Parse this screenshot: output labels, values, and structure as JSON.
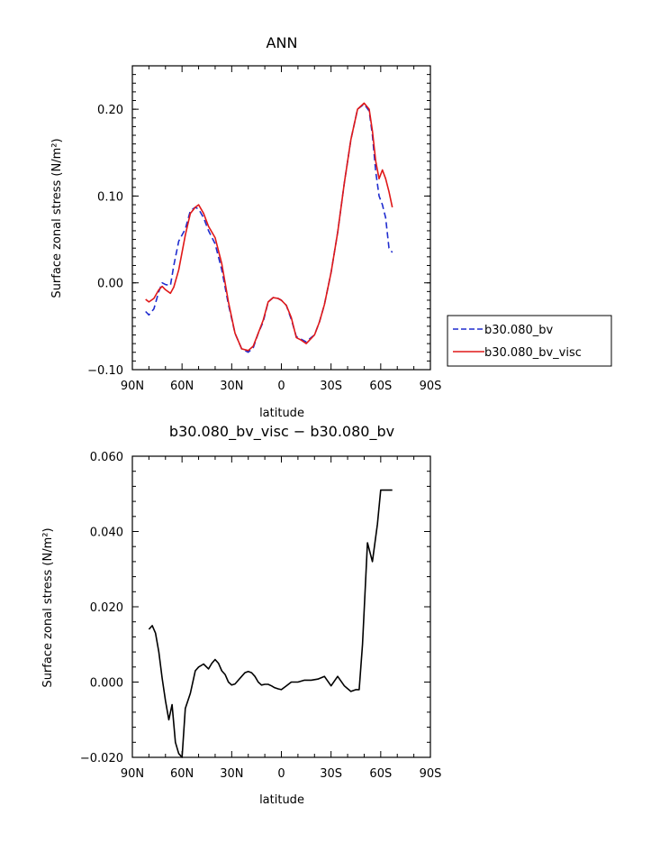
{
  "chart_data": [
    {
      "type": "line",
      "title": "ANN",
      "xlabel": "latitude",
      "ylabel": "Surface zonal stress (N/m²)",
      "xlim": [
        90,
        -90
      ],
      "ylim": [
        -0.1,
        0.25
      ],
      "xticks": [
        90,
        60,
        30,
        0,
        -30,
        -60,
        -90
      ],
      "xtick_labels": [
        "90N",
        "60N",
        "30N",
        "0",
        "30S",
        "60S",
        "90S"
      ],
      "yticks": [
        -0.1,
        0.0,
        0.1,
        0.2
      ],
      "ytick_labels": [
        "−0.10",
        "0.00",
        "0.10",
        "0.20"
      ],
      "legend": "right",
      "series": [
        {
          "name": "b30.080_bv",
          "color": "#1f2ccf",
          "dash": "dashed",
          "x": [
            82,
            80,
            77,
            74,
            72,
            70,
            67,
            65,
            62,
            58,
            55,
            52,
            50,
            47,
            44,
            40,
            36,
            32,
            28,
            24,
            20,
            17,
            14,
            11,
            8,
            5,
            2,
            0,
            -3,
            -6,
            -9,
            -12,
            -15,
            -18,
            -20,
            -23,
            -26,
            -30,
            -34,
            -38,
            -42,
            -46,
            -50,
            -53,
            -55,
            -57,
            -59,
            -61,
            -63,
            -65,
            -67
          ],
          "y": [
            -0.033,
            -0.037,
            -0.03,
            -0.01,
            0.0,
            -0.002,
            -0.003,
            0.02,
            0.048,
            0.062,
            0.083,
            0.087,
            0.085,
            0.075,
            0.06,
            0.045,
            0.015,
            -0.025,
            -0.058,
            -0.076,
            -0.08,
            -0.075,
            -0.058,
            -0.045,
            -0.022,
            -0.017,
            -0.018,
            -0.02,
            -0.026,
            -0.042,
            -0.062,
            -0.065,
            -0.068,
            -0.063,
            -0.06,
            -0.045,
            -0.025,
            0.012,
            0.058,
            0.115,
            0.165,
            0.2,
            0.206,
            0.198,
            0.17,
            0.128,
            0.1,
            0.09,
            0.075,
            0.04,
            0.035
          ]
        },
        {
          "name": "b30.080_bv_visc",
          "color": "#e01818",
          "dash": "solid",
          "x": [
            82,
            80,
            77,
            74,
            72,
            70,
            67,
            65,
            62,
            58,
            55,
            52,
            50,
            47,
            44,
            40,
            36,
            32,
            28,
            24,
            20,
            17,
            14,
            11,
            8,
            5,
            2,
            0,
            -3,
            -6,
            -9,
            -12,
            -15,
            -18,
            -20,
            -23,
            -26,
            -30,
            -34,
            -38,
            -42,
            -46,
            -50,
            -53,
            -55,
            -57,
            -59,
            -61,
            -63,
            -65,
            -67
          ],
          "y": [
            -0.019,
            -0.022,
            -0.018,
            -0.008,
            -0.004,
            -0.008,
            -0.012,
            -0.005,
            0.015,
            0.055,
            0.08,
            0.087,
            0.09,
            0.08,
            0.065,
            0.052,
            0.022,
            -0.022,
            -0.058,
            -0.076,
            -0.078,
            -0.073,
            -0.058,
            -0.043,
            -0.022,
            -0.017,
            -0.018,
            -0.02,
            -0.026,
            -0.04,
            -0.063,
            -0.066,
            -0.07,
            -0.064,
            -0.06,
            -0.045,
            -0.025,
            0.012,
            0.058,
            0.115,
            0.165,
            0.2,
            0.207,
            0.2,
            0.175,
            0.14,
            0.12,
            0.13,
            0.12,
            0.105,
            0.087
          ]
        }
      ]
    },
    {
      "type": "line",
      "title": "b30.080_bv_visc − b30.080_bv",
      "xlabel": "latitude",
      "ylabel": "Surface zonal stress (N/m²)",
      "xlim": [
        90,
        -90
      ],
      "ylim": [
        -0.02,
        0.06
      ],
      "xticks": [
        90,
        60,
        30,
        0,
        -30,
        -60,
        -90
      ],
      "xtick_labels": [
        "90N",
        "60N",
        "30N",
        "0",
        "30S",
        "60S",
        "90S"
      ],
      "yticks": [
        -0.02,
        0.0,
        0.02,
        0.04,
        0.06
      ],
      "ytick_labels": [
        "−0.020",
        "0.000",
        "0.020",
        "0.040",
        "0.060"
      ],
      "series": [
        {
          "color": "#000000",
          "dash": "solid",
          "x": [
            80,
            78,
            76,
            74,
            72,
            70,
            68,
            66,
            64,
            62,
            60,
            58,
            55,
            52,
            50,
            47,
            44,
            42,
            40,
            38,
            36,
            34,
            32,
            30,
            28,
            26,
            24,
            22,
            20,
            18,
            16,
            14,
            12,
            10,
            8,
            6,
            4,
            2,
            0,
            -3,
            -6,
            -10,
            -14,
            -18,
            -22,
            -26,
            -30,
            -34,
            -38,
            -42,
            -45,
            -47,
            -49,
            -52,
            -55,
            -58,
            -60,
            -62,
            -64,
            -65,
            -66,
            -67
          ],
          "y": [
            0.014,
            0.015,
            0.013,
            0.008,
            0.001,
            -0.005,
            -0.01,
            -0.006,
            -0.016,
            -0.019,
            -0.02,
            -0.007,
            -0.003,
            0.003,
            0.004,
            0.0048,
            0.0035,
            0.005,
            0.006,
            0.005,
            0.003,
            0.002,
            0.0,
            -0.0008,
            -0.0005,
            0.0005,
            0.0015,
            0.0025,
            0.0028,
            0.0025,
            0.0015,
            0.0,
            -0.0008,
            -0.0006,
            -0.0006,
            -0.001,
            -0.0015,
            -0.0018,
            -0.002,
            -0.001,
            0.0,
            0.0,
            0.0005,
            0.0005,
            0.0008,
            0.0015,
            -0.001,
            0.0015,
            -0.001,
            -0.0025,
            -0.002,
            -0.002,
            0.01,
            0.037,
            0.032,
            0.042,
            0.051,
            0.051,
            0.051,
            0.051,
            0.051,
            0.051
          ]
        }
      ]
    }
  ]
}
